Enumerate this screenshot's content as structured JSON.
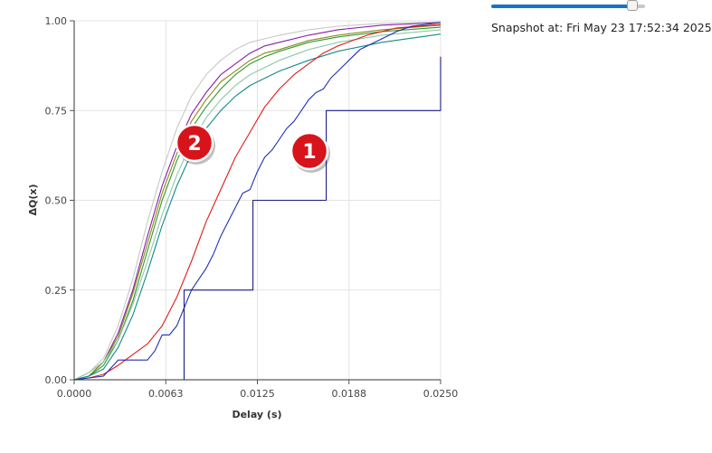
{
  "snapshot": {
    "label": "Snapshot at:",
    "time": "Fri May 23 17:52:34 2025",
    "slider_position": 0.95
  },
  "chart_data": {
    "type": "line",
    "xlabel": "Delay (s)",
    "ylabel": "ΔQ(x)",
    "xlim": [
      0,
      0.025
    ],
    "ylim": [
      0,
      1
    ],
    "xticks": [
      0,
      0.00625,
      0.0125,
      0.01875,
      0.025
    ],
    "xtick_labels": [
      "0.0000",
      "0.0063",
      "0.0125",
      "0.0188",
      "0.0250"
    ],
    "yticks": [
      0,
      0.25,
      0.5,
      0.75,
      1
    ],
    "ytick_labels": [
      "0.00",
      "0.25",
      "0.50",
      "0.75",
      "1.00"
    ],
    "grid": true,
    "series": [
      {
        "color": "#c8c8c8",
        "points": [
          [
            0,
            0
          ],
          [
            0.001,
            0.02
          ],
          [
            0.002,
            0.06
          ],
          [
            0.003,
            0.15
          ],
          [
            0.004,
            0.28
          ],
          [
            0.005,
            0.44
          ],
          [
            0.006,
            0.58
          ],
          [
            0.007,
            0.7
          ],
          [
            0.008,
            0.79
          ],
          [
            0.009,
            0.85
          ],
          [
            0.01,
            0.89
          ],
          [
            0.011,
            0.92
          ],
          [
            0.012,
            0.94
          ],
          [
            0.013,
            0.95
          ],
          [
            0.014,
            0.96
          ],
          [
            0.016,
            0.975
          ],
          [
            0.018,
            0.985
          ],
          [
            0.021,
            0.993
          ],
          [
            0.025,
            0.997
          ]
        ]
      },
      {
        "color": "#8b1ca8",
        "points": [
          [
            0,
            0
          ],
          [
            0.001,
            0.01
          ],
          [
            0.002,
            0.05
          ],
          [
            0.003,
            0.13
          ],
          [
            0.004,
            0.25
          ],
          [
            0.005,
            0.4
          ],
          [
            0.006,
            0.54
          ],
          [
            0.007,
            0.65
          ],
          [
            0.008,
            0.74
          ],
          [
            0.009,
            0.8
          ],
          [
            0.01,
            0.85
          ],
          [
            0.011,
            0.88
          ],
          [
            0.012,
            0.91
          ],
          [
            0.013,
            0.93
          ],
          [
            0.014,
            0.94
          ],
          [
            0.016,
            0.96
          ],
          [
            0.018,
            0.975
          ],
          [
            0.021,
            0.988
          ],
          [
            0.025,
            0.995
          ]
        ]
      },
      {
        "color": "#8a8a1a",
        "points": [
          [
            0,
            0
          ],
          [
            0.001,
            0.01
          ],
          [
            0.002,
            0.05
          ],
          [
            0.003,
            0.12
          ],
          [
            0.004,
            0.24
          ],
          [
            0.005,
            0.38
          ],
          [
            0.006,
            0.52
          ],
          [
            0.007,
            0.63
          ],
          [
            0.008,
            0.72
          ],
          [
            0.009,
            0.78
          ],
          [
            0.01,
            0.83
          ],
          [
            0.011,
            0.86
          ],
          [
            0.012,
            0.89
          ],
          [
            0.013,
            0.91
          ],
          [
            0.014,
            0.92
          ],
          [
            0.016,
            0.945
          ],
          [
            0.018,
            0.96
          ],
          [
            0.021,
            0.975
          ],
          [
            0.025,
            0.988
          ]
        ]
      },
      {
        "color": "#2e9a2e",
        "points": [
          [
            0,
            0
          ],
          [
            0.001,
            0.01
          ],
          [
            0.002,
            0.04
          ],
          [
            0.003,
            0.11
          ],
          [
            0.004,
            0.22
          ],
          [
            0.005,
            0.36
          ],
          [
            0.006,
            0.5
          ],
          [
            0.007,
            0.61
          ],
          [
            0.008,
            0.7
          ],
          [
            0.009,
            0.76
          ],
          [
            0.01,
            0.81
          ],
          [
            0.011,
            0.85
          ],
          [
            0.012,
            0.88
          ],
          [
            0.013,
            0.9
          ],
          [
            0.014,
            0.915
          ],
          [
            0.016,
            0.94
          ],
          [
            0.018,
            0.955
          ],
          [
            0.021,
            0.97
          ],
          [
            0.025,
            0.982
          ]
        ]
      },
      {
        "color": "#8fc8a8",
        "points": [
          [
            0,
            0
          ],
          [
            0.001,
            0.02
          ],
          [
            0.002,
            0.05
          ],
          [
            0.003,
            0.11
          ],
          [
            0.004,
            0.21
          ],
          [
            0.005,
            0.33
          ],
          [
            0.006,
            0.46
          ],
          [
            0.007,
            0.57
          ],
          [
            0.008,
            0.66
          ],
          [
            0.009,
            0.73
          ],
          [
            0.01,
            0.78
          ],
          [
            0.011,
            0.82
          ],
          [
            0.012,
            0.85
          ],
          [
            0.013,
            0.87
          ],
          [
            0.014,
            0.89
          ],
          [
            0.016,
            0.92
          ],
          [
            0.018,
            0.94
          ],
          [
            0.021,
            0.96
          ],
          [
            0.025,
            0.975
          ]
        ]
      },
      {
        "color": "#138a8a",
        "points": [
          [
            0,
            0
          ],
          [
            0.001,
            0.01
          ],
          [
            0.002,
            0.03
          ],
          [
            0.003,
            0.09
          ],
          [
            0.004,
            0.18
          ],
          [
            0.005,
            0.3
          ],
          [
            0.006,
            0.43
          ],
          [
            0.007,
            0.54
          ],
          [
            0.008,
            0.63
          ],
          [
            0.009,
            0.7
          ],
          [
            0.01,
            0.75
          ],
          [
            0.011,
            0.79
          ],
          [
            0.012,
            0.82
          ],
          [
            0.013,
            0.84
          ],
          [
            0.014,
            0.86
          ],
          [
            0.016,
            0.89
          ],
          [
            0.018,
            0.915
          ],
          [
            0.021,
            0.94
          ],
          [
            0.025,
            0.963
          ]
        ]
      },
      {
        "color": "#e01a1a",
        "points": [
          [
            0,
            0
          ],
          [
            0.001,
            0.005
          ],
          [
            0.002,
            0.015
          ],
          [
            0.003,
            0.04
          ],
          [
            0.004,
            0.07
          ],
          [
            0.005,
            0.1
          ],
          [
            0.006,
            0.15
          ],
          [
            0.007,
            0.23
          ],
          [
            0.008,
            0.33
          ],
          [
            0.009,
            0.44
          ],
          [
            0.01,
            0.53
          ],
          [
            0.011,
            0.62
          ],
          [
            0.012,
            0.69
          ],
          [
            0.013,
            0.76
          ],
          [
            0.014,
            0.81
          ],
          [
            0.015,
            0.85
          ],
          [
            0.016,
            0.88
          ],
          [
            0.017,
            0.91
          ],
          [
            0.018,
            0.93
          ],
          [
            0.02,
            0.96
          ],
          [
            0.022,
            0.98
          ],
          [
            0.025,
            0.99
          ]
        ]
      },
      {
        "color": "#1f2fb8",
        "points": [
          [
            0,
            0
          ],
          [
            0.001,
            0.005
          ],
          [
            0.002,
            0.01
          ],
          [
            0.003,
            0.055
          ],
          [
            0.004,
            0.055
          ],
          [
            0.005,
            0.055
          ],
          [
            0.0055,
            0.08
          ],
          [
            0.006,
            0.125
          ],
          [
            0.0065,
            0.125
          ],
          [
            0.007,
            0.15
          ],
          [
            0.0075,
            0.2
          ],
          [
            0.008,
            0.25
          ],
          [
            0.0085,
            0.28
          ],
          [
            0.009,
            0.31
          ],
          [
            0.0095,
            0.35
          ],
          [
            0.01,
            0.4
          ],
          [
            0.0105,
            0.44
          ],
          [
            0.011,
            0.48
          ],
          [
            0.0115,
            0.52
          ],
          [
            0.012,
            0.53
          ],
          [
            0.0125,
            0.58
          ],
          [
            0.013,
            0.62
          ],
          [
            0.0135,
            0.64
          ],
          [
            0.014,
            0.67
          ],
          [
            0.0145,
            0.7
          ],
          [
            0.015,
            0.72
          ],
          [
            0.0155,
            0.75
          ],
          [
            0.016,
            0.78
          ],
          [
            0.0165,
            0.8
          ],
          [
            0.017,
            0.81
          ],
          [
            0.0175,
            0.84
          ],
          [
            0.018,
            0.86
          ],
          [
            0.0185,
            0.88
          ],
          [
            0.019,
            0.9
          ],
          [
            0.0195,
            0.92
          ],
          [
            0.02,
            0.93
          ],
          [
            0.021,
            0.95
          ],
          [
            0.022,
            0.97
          ],
          [
            0.023,
            0.985
          ],
          [
            0.024,
            0.99
          ],
          [
            0.025,
            0.995
          ]
        ]
      },
      {
        "color": "#1a1a8a",
        "step": true,
        "points": [
          [
            0.0075,
            0
          ],
          [
            0.0075,
            0.25
          ],
          [
            0.0122,
            0.25
          ],
          [
            0.0122,
            0.5
          ],
          [
            0.0172,
            0.5
          ],
          [
            0.0172,
            0.75
          ],
          [
            0.025,
            0.75
          ],
          [
            0.025,
            0.9
          ]
        ]
      }
    ],
    "annotations": [
      {
        "label": "1",
        "x": 0.0162,
        "y": 0.64
      },
      {
        "label": "2",
        "x": 0.0084,
        "y": 0.66
      }
    ]
  }
}
